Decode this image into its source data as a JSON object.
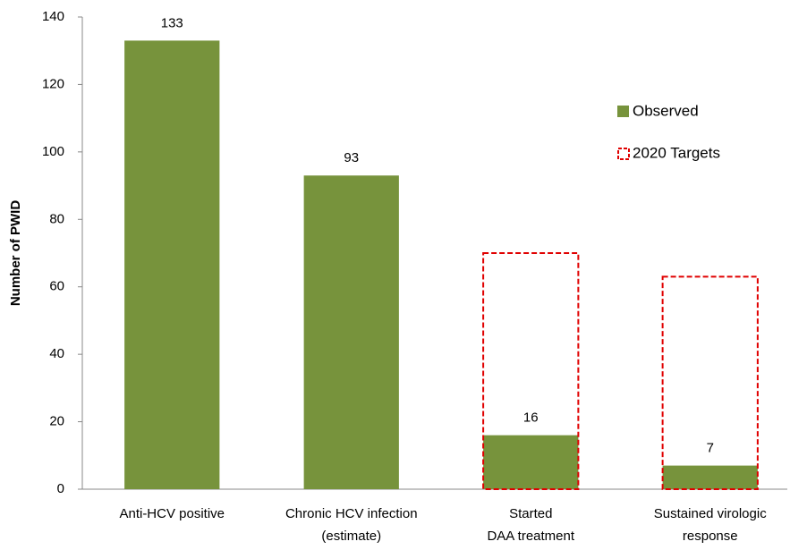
{
  "chart_data": {
    "type": "bar",
    "y_label": "Number of PWID",
    "categories": [
      [
        "Anti-HCV positive"
      ],
      [
        "Chronic HCV infection",
        "(estimate)"
      ],
      [
        "Started",
        "DAA treatment"
      ],
      [
        "Sustained virologic",
        "response"
      ]
    ],
    "series": [
      {
        "name": "Observed",
        "color": "#77933c",
        "style": "filled",
        "values": [
          133,
          93,
          16,
          7
        ]
      },
      {
        "name": "2020 Targets",
        "color": "#e00000",
        "style": "dashed-outline",
        "values": [
          null,
          null,
          70,
          63
        ]
      }
    ],
    "ylim": [
      0,
      140
    ],
    "yticks": [
      0,
      20,
      40,
      60,
      80,
      100,
      120,
      140
    ],
    "grid": false,
    "legend": "right"
  }
}
